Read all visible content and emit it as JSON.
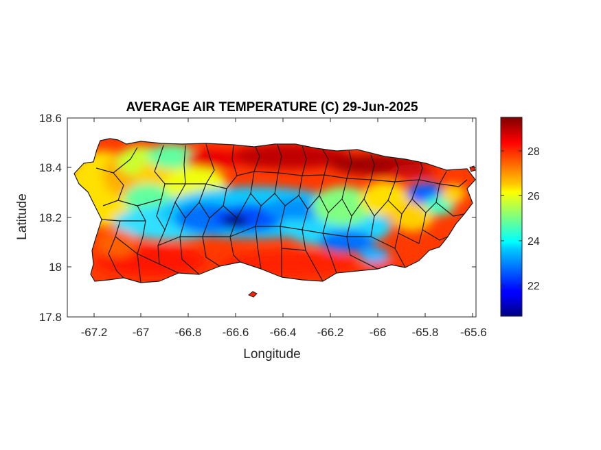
{
  "title": "AVERAGE AIR TEMPERATURE (C) 29-Jun-2025",
  "xlabel": "Longitude",
  "ylabel": "Latitude",
  "x_ticks": [
    "-67.2",
    "-67",
    "-66.8",
    "-66.6",
    "-66.4",
    "-66.2",
    "-66",
    "-65.8",
    "-65.6"
  ],
  "y_ticks": [
    "18.6",
    "18.4",
    "18.2",
    "18"
  ],
  "y_tick_bottom": "17.8",
  "colorbar": {
    "ticks": [
      "28",
      "26",
      "24",
      "22"
    ],
    "colormap": "jet"
  },
  "chart_data": {
    "type": "heatmap",
    "title": "AVERAGE AIR TEMPERATURE (C) 29-Jun-2025",
    "xlabel": "Longitude",
    "ylabel": "Latitude",
    "xlim": [
      -67.3,
      -65.58
    ],
    "ylim": [
      17.8,
      18.6
    ],
    "x_ticks": [
      -67.2,
      -67.0,
      -66.8,
      -66.6,
      -66.4,
      -66.2,
      -66.0,
      -65.8,
      -65.6
    ],
    "y_ticks": [
      17.8,
      18.0,
      18.2,
      18.4,
      18.6
    ],
    "colorbar_range": [
      20.6,
      29.6
    ],
    "colorbar_ticks": [
      22,
      24,
      26,
      28
    ],
    "colormap": "jet",
    "grid": false,
    "region": "Puerto Rico",
    "temperature_features": [
      {
        "feature": "central mountain cool band",
        "approx_temp_c": 22.5,
        "lon_range": [
          -66.95,
          -66.0
        ],
        "lat": 18.17
      },
      {
        "feature": "coldest pocket",
        "approx_temp_c": 20.8,
        "lon": -66.56,
        "lat": 18.17
      },
      {
        "feature": "east cool pocket",
        "approx_temp_c": 23.0,
        "lon": -65.8,
        "lat": 18.3
      },
      {
        "feature": "north coast warm belt",
        "approx_temp_c": 29.0,
        "lon_range": [
          -66.6,
          -65.9
        ],
        "lat": 18.45
      },
      {
        "feature": "south coast warm belt",
        "approx_temp_c": 28.0,
        "lon_range": [
          -67.1,
          -66.0
        ],
        "lat": 18.0
      },
      {
        "feature": "west coast",
        "approx_temp_c": 26.5,
        "lon": -67.15,
        "lat": 18.25
      }
    ]
  }
}
